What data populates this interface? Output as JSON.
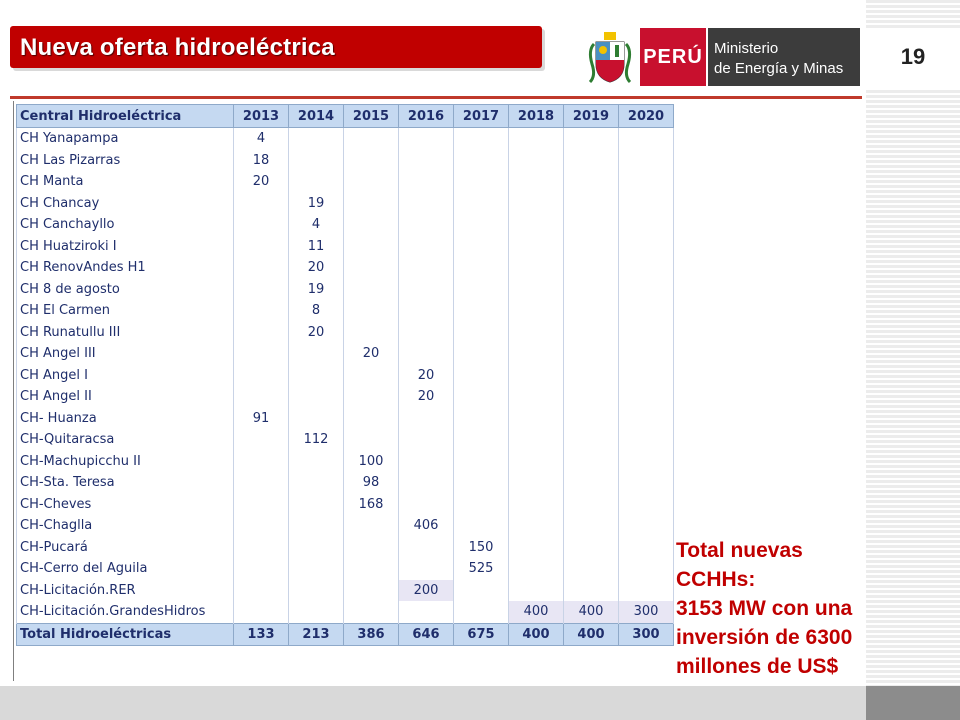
{
  "header": {
    "title": "Nueva oferta hidroeléctrica",
    "logo_peru": "PERÚ",
    "ministry_line1": "Ministerio",
    "ministry_line2": "de Energía y Minas",
    "page_number": "19"
  },
  "colors": {
    "accent_red": "#c00000",
    "table_header": "#c5d9f1",
    "table_text": "#1f2e6b",
    "highlight_cell": "#e8e6f4"
  },
  "table": {
    "columns": [
      "Central Hidroeléctrica",
      "2013",
      "2014",
      "2015",
      "2016",
      "2017",
      "2018",
      "2019",
      "2020"
    ],
    "rows": [
      {
        "name": "CH Yanapampa",
        "values": [
          "4",
          "",
          "",
          "",
          "",
          "",
          "",
          ""
        ]
      },
      {
        "name": "CH Las Pizarras",
        "values": [
          "18",
          "",
          "",
          "",
          "",
          "",
          "",
          ""
        ]
      },
      {
        "name": "CH Manta",
        "values": [
          "20",
          "",
          "",
          "",
          "",
          "",
          "",
          ""
        ]
      },
      {
        "name": "CH Chancay",
        "values": [
          "",
          "19",
          "",
          "",
          "",
          "",
          "",
          ""
        ]
      },
      {
        "name": "CH Canchayllo",
        "values": [
          "",
          "4",
          "",
          "",
          "",
          "",
          "",
          ""
        ]
      },
      {
        "name": "CH Huatziroki I",
        "values": [
          "",
          "11",
          "",
          "",
          "",
          "",
          "",
          ""
        ]
      },
      {
        "name": "CH RenovAndes H1",
        "values": [
          "",
          "20",
          "",
          "",
          "",
          "",
          "",
          ""
        ]
      },
      {
        "name": "CH 8 de agosto",
        "values": [
          "",
          "19",
          "",
          "",
          "",
          "",
          "",
          ""
        ]
      },
      {
        "name": "CH El Carmen",
        "values": [
          "",
          "8",
          "",
          "",
          "",
          "",
          "",
          ""
        ]
      },
      {
        "name": "CH Runatullu III",
        "values": [
          "",
          "20",
          "",
          "",
          "",
          "",
          "",
          ""
        ]
      },
      {
        "name": "CH Angel III",
        "values": [
          "",
          "",
          "20",
          "",
          "",
          "",
          "",
          ""
        ]
      },
      {
        "name": "CH Angel I",
        "values": [
          "",
          "",
          "",
          "20",
          "",
          "",
          "",
          ""
        ]
      },
      {
        "name": "CH Angel II",
        "values": [
          "",
          "",
          "",
          "20",
          "",
          "",
          "",
          ""
        ]
      },
      {
        "name": "CH- Huanza",
        "values": [
          "91",
          "",
          "",
          "",
          "",
          "",
          "",
          ""
        ]
      },
      {
        "name": "CH-Quitaracsa",
        "values": [
          "",
          "112",
          "",
          "",
          "",
          "",
          "",
          ""
        ]
      },
      {
        "name": "CH-Machupicchu II",
        "values": [
          "",
          "",
          "100",
          "",
          "",
          "",
          "",
          ""
        ]
      },
      {
        "name": "CH-Sta. Teresa",
        "values": [
          "",
          "",
          "98",
          "",
          "",
          "",
          "",
          ""
        ]
      },
      {
        "name": "CH-Cheves",
        "values": [
          "",
          "",
          "168",
          "",
          "",
          "",
          "",
          ""
        ]
      },
      {
        "name": "CH-Chaglla",
        "values": [
          "",
          "",
          "",
          "406",
          "",
          "",
          "",
          ""
        ]
      },
      {
        "name": "CH-Pucará",
        "values": [
          "",
          "",
          "",
          "",
          "150",
          "",
          "",
          ""
        ]
      },
      {
        "name": "CH-Cerro del Aguila",
        "values": [
          "",
          "",
          "",
          "",
          "525",
          "",
          "",
          ""
        ]
      },
      {
        "name": "CH-Licitación.RER",
        "values": [
          "",
          "",
          "",
          "200",
          "",
          "",
          "",
          ""
        ],
        "highlight": [
          3
        ]
      },
      {
        "name": "CH-Licitación.GrandesHidros",
        "values": [
          "",
          "",
          "",
          "",
          "",
          "400",
          "400",
          "300"
        ],
        "highlight": [
          5,
          6,
          7
        ]
      }
    ],
    "total": {
      "name": "Total Hidroeléctricas",
      "values": [
        "133",
        "213",
        "386",
        "646",
        "675",
        "400",
        "400",
        "300"
      ]
    }
  },
  "summary": {
    "line1": "Total nuevas CCHHs:",
    "line2": "3153 MW con una",
    "line3": "inversión de 6300",
    "line4": "millones de US$"
  }
}
